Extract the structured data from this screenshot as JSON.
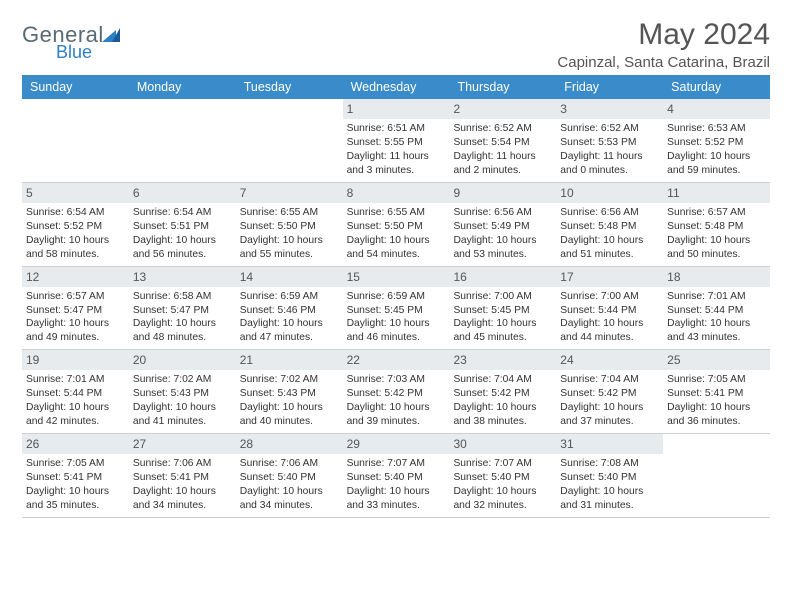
{
  "logo": {
    "text1": "General",
    "text2": "Blue"
  },
  "title": "May 2024",
  "location": "Capinzal, Santa Catarina, Brazil",
  "colors": {
    "header_bg": "#3a8bc9",
    "daynum_bg": "#e8ebee",
    "text": "#333333",
    "title_text": "#555555"
  },
  "day_headers": [
    "Sunday",
    "Monday",
    "Tuesday",
    "Wednesday",
    "Thursday",
    "Friday",
    "Saturday"
  ],
  "weeks": [
    [
      null,
      null,
      null,
      {
        "n": "1",
        "sr": "6:51 AM",
        "ss": "5:55 PM",
        "dl": "11 hours and 3 minutes."
      },
      {
        "n": "2",
        "sr": "6:52 AM",
        "ss": "5:54 PM",
        "dl": "11 hours and 2 minutes."
      },
      {
        "n": "3",
        "sr": "6:52 AM",
        "ss": "5:53 PM",
        "dl": "11 hours and 0 minutes."
      },
      {
        "n": "4",
        "sr": "6:53 AM",
        "ss": "5:52 PM",
        "dl": "10 hours and 59 minutes."
      }
    ],
    [
      {
        "n": "5",
        "sr": "6:54 AM",
        "ss": "5:52 PM",
        "dl": "10 hours and 58 minutes."
      },
      {
        "n": "6",
        "sr": "6:54 AM",
        "ss": "5:51 PM",
        "dl": "10 hours and 56 minutes."
      },
      {
        "n": "7",
        "sr": "6:55 AM",
        "ss": "5:50 PM",
        "dl": "10 hours and 55 minutes."
      },
      {
        "n": "8",
        "sr": "6:55 AM",
        "ss": "5:50 PM",
        "dl": "10 hours and 54 minutes."
      },
      {
        "n": "9",
        "sr": "6:56 AM",
        "ss": "5:49 PM",
        "dl": "10 hours and 53 minutes."
      },
      {
        "n": "10",
        "sr": "6:56 AM",
        "ss": "5:48 PM",
        "dl": "10 hours and 51 minutes."
      },
      {
        "n": "11",
        "sr": "6:57 AM",
        "ss": "5:48 PM",
        "dl": "10 hours and 50 minutes."
      }
    ],
    [
      {
        "n": "12",
        "sr": "6:57 AM",
        "ss": "5:47 PM",
        "dl": "10 hours and 49 minutes."
      },
      {
        "n": "13",
        "sr": "6:58 AM",
        "ss": "5:47 PM",
        "dl": "10 hours and 48 minutes."
      },
      {
        "n": "14",
        "sr": "6:59 AM",
        "ss": "5:46 PM",
        "dl": "10 hours and 47 minutes."
      },
      {
        "n": "15",
        "sr": "6:59 AM",
        "ss": "5:45 PM",
        "dl": "10 hours and 46 minutes."
      },
      {
        "n": "16",
        "sr": "7:00 AM",
        "ss": "5:45 PM",
        "dl": "10 hours and 45 minutes."
      },
      {
        "n": "17",
        "sr": "7:00 AM",
        "ss": "5:44 PM",
        "dl": "10 hours and 44 minutes."
      },
      {
        "n": "18",
        "sr": "7:01 AM",
        "ss": "5:44 PM",
        "dl": "10 hours and 43 minutes."
      }
    ],
    [
      {
        "n": "19",
        "sr": "7:01 AM",
        "ss": "5:44 PM",
        "dl": "10 hours and 42 minutes."
      },
      {
        "n": "20",
        "sr": "7:02 AM",
        "ss": "5:43 PM",
        "dl": "10 hours and 41 minutes."
      },
      {
        "n": "21",
        "sr": "7:02 AM",
        "ss": "5:43 PM",
        "dl": "10 hours and 40 minutes."
      },
      {
        "n": "22",
        "sr": "7:03 AM",
        "ss": "5:42 PM",
        "dl": "10 hours and 39 minutes."
      },
      {
        "n": "23",
        "sr": "7:04 AM",
        "ss": "5:42 PM",
        "dl": "10 hours and 38 minutes."
      },
      {
        "n": "24",
        "sr": "7:04 AM",
        "ss": "5:42 PM",
        "dl": "10 hours and 37 minutes."
      },
      {
        "n": "25",
        "sr": "7:05 AM",
        "ss": "5:41 PM",
        "dl": "10 hours and 36 minutes."
      }
    ],
    [
      {
        "n": "26",
        "sr": "7:05 AM",
        "ss": "5:41 PM",
        "dl": "10 hours and 35 minutes."
      },
      {
        "n": "27",
        "sr": "7:06 AM",
        "ss": "5:41 PM",
        "dl": "10 hours and 34 minutes."
      },
      {
        "n": "28",
        "sr": "7:06 AM",
        "ss": "5:40 PM",
        "dl": "10 hours and 34 minutes."
      },
      {
        "n": "29",
        "sr": "7:07 AM",
        "ss": "5:40 PM",
        "dl": "10 hours and 33 minutes."
      },
      {
        "n": "30",
        "sr": "7:07 AM",
        "ss": "5:40 PM",
        "dl": "10 hours and 32 minutes."
      },
      {
        "n": "31",
        "sr": "7:08 AM",
        "ss": "5:40 PM",
        "dl": "10 hours and 31 minutes."
      },
      null
    ]
  ],
  "labels": {
    "sunrise": "Sunrise:",
    "sunset": "Sunset:",
    "daylight": "Daylight:"
  }
}
